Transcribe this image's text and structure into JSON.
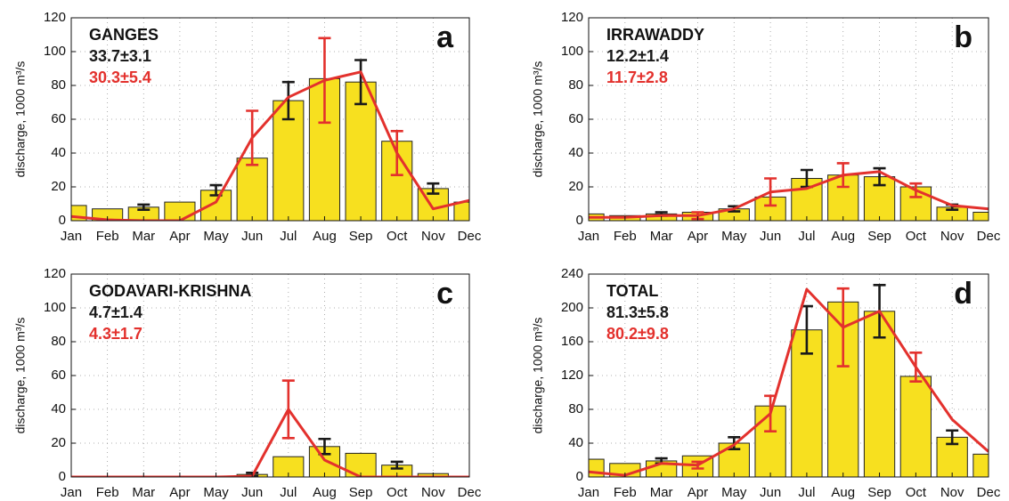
{
  "chart_data": [
    {
      "type": "bar",
      "title": "GANGES",
      "annotations": [
        "33.7±3.1",
        "30.3±5.4"
      ],
      "panel_label": "a",
      "ylabel": "discharge, 1000 m³/s",
      "categories": [
        "Jan",
        "Feb",
        "Mar",
        "Apr",
        "May",
        "Jun",
        "Jul",
        "Aug",
        "Sep",
        "Oct",
        "Nov",
        "Dec"
      ],
      "bars": {
        "color": "#f7e01f",
        "error_color": "#1a1a1a",
        "values": [
          9,
          7,
          8,
          11,
          18,
          37,
          71,
          84,
          82,
          47,
          19,
          11
        ],
        "errors": [
          null,
          null,
          1.5,
          null,
          3,
          null,
          11,
          null,
          13,
          null,
          3,
          null
        ]
      },
      "line": {
        "color": "#e3312d",
        "values": [
          2.5,
          0.5,
          0,
          0,
          11,
          49,
          73,
          83,
          88,
          40,
          7,
          12
        ],
        "errors": [
          null,
          null,
          null,
          null,
          null,
          16,
          null,
          25,
          null,
          13,
          null,
          null
        ]
      },
      "ylim": [
        0,
        120
      ],
      "yticks": [
        0,
        20,
        40,
        60,
        80,
        100,
        120
      ],
      "grid": true
    },
    {
      "type": "bar",
      "title": "IRRAWADDY",
      "annotations": [
        "12.2±1.4",
        "11.7±2.8"
      ],
      "panel_label": "b",
      "ylabel": "discharge, 1000 m³/s",
      "categories": [
        "Jan",
        "Feb",
        "Mar",
        "Apr",
        "May",
        "Jun",
        "Jul",
        "Aug",
        "Sep",
        "Oct",
        "Nov",
        "Dec"
      ],
      "bars": {
        "color": "#f7e01f",
        "error_color": "#1a1a1a",
        "values": [
          4,
          3,
          4,
          5,
          7,
          14,
          25,
          27,
          26,
          20,
          8,
          5
        ],
        "errors": [
          null,
          null,
          1,
          null,
          1.5,
          null,
          5,
          null,
          5,
          null,
          1.5,
          null
        ]
      },
      "line": {
        "color": "#e3312d",
        "values": [
          2,
          2,
          3,
          3,
          7,
          17,
          19,
          27,
          29,
          18,
          9,
          7
        ],
        "errors": [
          null,
          null,
          null,
          2,
          null,
          8,
          null,
          7,
          null,
          4,
          null,
          null
        ]
      },
      "ylim": [
        0,
        120
      ],
      "yticks": [
        0,
        20,
        40,
        60,
        80,
        100,
        120
      ],
      "grid": true
    },
    {
      "type": "bar",
      "title": "GODAVARI-KRISHNA",
      "annotations": [
        "4.7±1.4",
        "4.3±1.7"
      ],
      "panel_label": "c",
      "ylabel": "discharge, 1000 m³/s",
      "categories": [
        "Jan",
        "Feb",
        "Mar",
        "Apr",
        "May",
        "Jun",
        "Jul",
        "Aug",
        "Sep",
        "Oct",
        "Nov",
        "Dec"
      ],
      "bars": {
        "color": "#f7e01f",
        "error_color": "#1a1a1a",
        "values": [
          0,
          0.5,
          0,
          0.3,
          0.3,
          1.5,
          12,
          18,
          14,
          7,
          2,
          0.5
        ],
        "errors": [
          null,
          null,
          null,
          null,
          null,
          1,
          null,
          4.5,
          null,
          2,
          null,
          null
        ]
      },
      "line": {
        "color": "#e3312d",
        "values": [
          0,
          0,
          0,
          0,
          0,
          0.5,
          40,
          10,
          0,
          0,
          0,
          0
        ],
        "errors": [
          null,
          null,
          null,
          null,
          null,
          null,
          17,
          null,
          null,
          null,
          null,
          null
        ]
      },
      "ylim": [
        0,
        120
      ],
      "yticks": [
        0,
        20,
        40,
        60,
        80,
        100,
        120
      ],
      "grid": true
    },
    {
      "type": "bar",
      "title": "TOTAL",
      "annotations": [
        "81.3±5.8",
        "80.2±9.8"
      ],
      "panel_label": "d",
      "ylabel": "discharge, 1000 m³/s",
      "categories": [
        "Jan",
        "Feb",
        "Mar",
        "Apr",
        "May",
        "Jun",
        "Jul",
        "Aug",
        "Sep",
        "Oct",
        "Nov",
        "Dec"
      ],
      "bars": {
        "color": "#f7e01f",
        "error_color": "#1a1a1a",
        "values": [
          21,
          16,
          19,
          25,
          40,
          84,
          174,
          207,
          196,
          119,
          47,
          27
        ],
        "errors": [
          null,
          null,
          3,
          null,
          7,
          null,
          28,
          null,
          31,
          null,
          8,
          null
        ]
      },
      "line": {
        "color": "#e3312d",
        "values": [
          6,
          2,
          16,
          14,
          38,
          75,
          222,
          177,
          196,
          130,
          68,
          30
        ],
        "errors": [
          null,
          null,
          null,
          4,
          null,
          21,
          null,
          46,
          null,
          17,
          null,
          null
        ]
      },
      "ylim": [
        0,
        240
      ],
      "yticks": [
        0,
        40,
        80,
        120,
        160,
        200,
        240
      ],
      "grid": true
    }
  ]
}
